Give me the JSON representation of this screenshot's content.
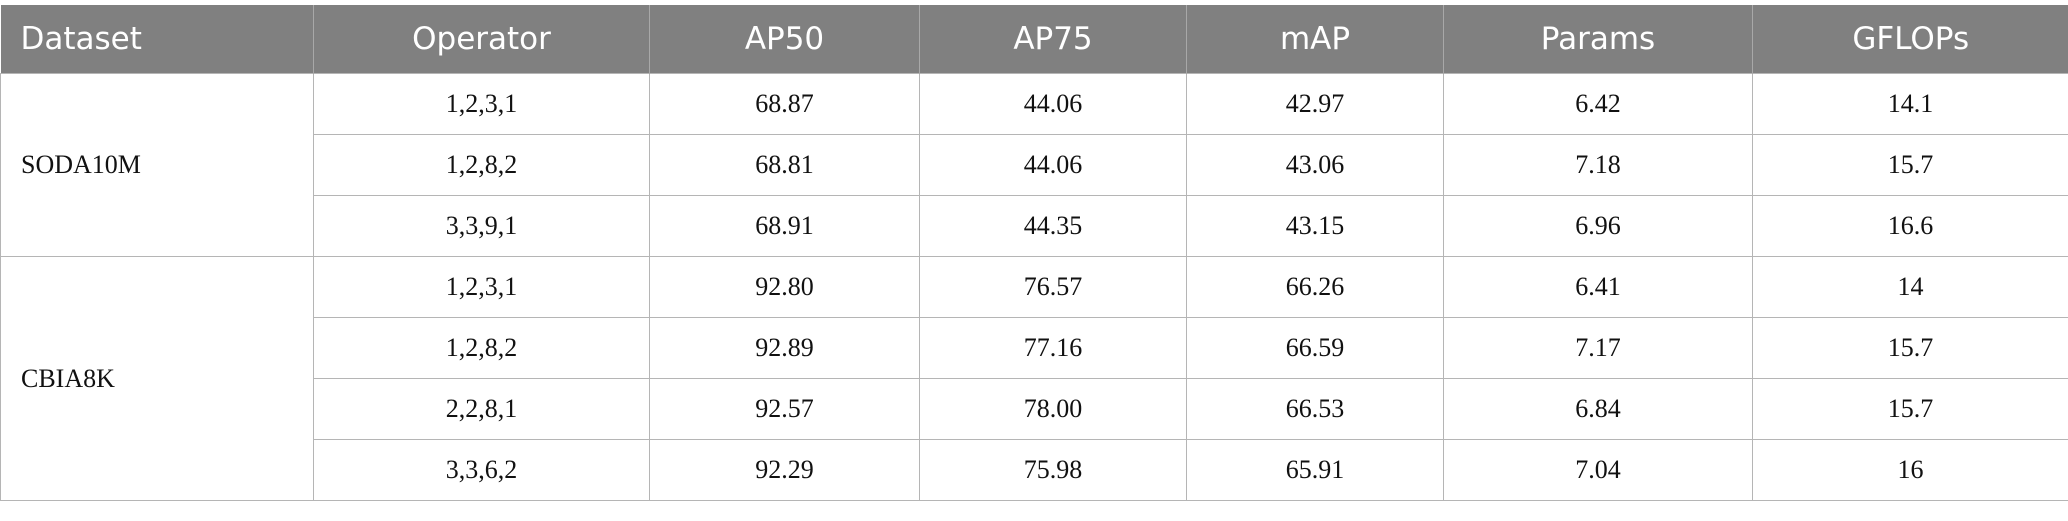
{
  "table": {
    "header": [
      "Dataset",
      "Operator",
      "AP50",
      "AP75",
      "mAP",
      "Params",
      "GFLOPs"
    ],
    "groups": [
      {
        "dataset": "SODA10M",
        "rows": [
          [
            "1,2,3,1",
            "68.87",
            "44.06",
            "42.97",
            "6.42",
            "14.1"
          ],
          [
            "1,2,8,2",
            "68.81",
            "44.06",
            "43.06",
            "7.18",
            "15.7"
          ],
          [
            "3,3,9,1",
            "68.91",
            "44.35",
            "43.15",
            "6.96",
            "16.6"
          ]
        ]
      },
      {
        "dataset": "CBIA8K",
        "rows": [
          [
            "1,2,3,1",
            "92.80",
            "76.57",
            "66.26",
            "6.41",
            "14"
          ],
          [
            "1,2,8,2",
            "92.89",
            "77.16",
            "66.59",
            "7.17",
            "15.7"
          ],
          [
            "2,2,8,1",
            "92.57",
            "78.00",
            "66.53",
            "6.84",
            "15.7"
          ],
          [
            "3,3,6,2",
            "92.29",
            "75.98",
            "65.91",
            "7.04",
            "16"
          ]
        ]
      }
    ]
  }
}
